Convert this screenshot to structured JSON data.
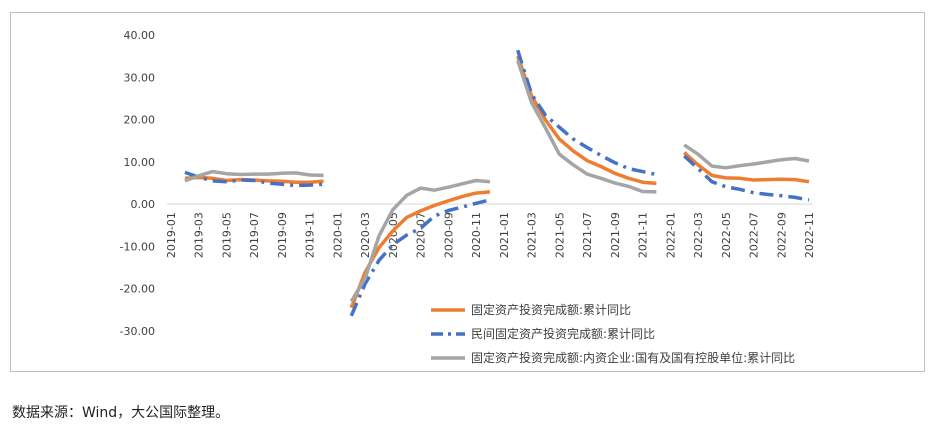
{
  "chart_data": {
    "type": "line",
    "title": "",
    "xlabel": "",
    "ylabel": "",
    "ylim": [
      -30,
      40
    ],
    "yticks": [
      "40.00",
      "30.00",
      "20.00",
      "10.00",
      "0.00",
      "-10.00",
      "-20.00",
      "-30.00"
    ],
    "x": [
      "2019-01",
      "2019-02",
      "2019-03",
      "2019-04",
      "2019-05",
      "2019-06",
      "2019-07",
      "2019-08",
      "2019-09",
      "2019-10",
      "2019-11",
      "2019-12",
      "2020-01",
      "2020-02",
      "2020-03",
      "2020-04",
      "2020-05",
      "2020-06",
      "2020-07",
      "2020-08",
      "2020-09",
      "2020-10",
      "2020-11",
      "2020-12",
      "2021-01",
      "2021-02",
      "2021-03",
      "2021-04",
      "2021-05",
      "2021-06",
      "2021-07",
      "2021-08",
      "2021-09",
      "2021-10",
      "2021-11",
      "2021-12",
      "2022-01",
      "2022-02",
      "2022-03",
      "2022-04",
      "2022-05",
      "2022-06",
      "2022-07",
      "2022-08",
      "2022-09",
      "2022-10",
      "2022-11"
    ],
    "xtick_labels": [
      "2019-01",
      "2019-03",
      "2019-05",
      "2019-07",
      "2019-09",
      "2019-11",
      "2020-01",
      "2020-03",
      "2020-05",
      "2020-07",
      "2020-09",
      "2020-11",
      "2021-01",
      "2021-03",
      "2021-05",
      "2021-07",
      "2021-09",
      "2021-11",
      "2022-01",
      "2022-03",
      "2022-05",
      "2022-07",
      "2022-09",
      "2022-11"
    ],
    "grid": false,
    "legend_position": "bottom-right",
    "series": [
      {
        "name": "固定资产投资完成额:累计同比",
        "color": "#ED7D31",
        "style": "solid",
        "values": [
          null,
          6.1,
          6.3,
          6.1,
          5.6,
          5.8,
          5.7,
          5.5,
          5.4,
          5.2,
          5.2,
          5.4,
          null,
          -24.5,
          -16.1,
          -10.3,
          -6.3,
          -3.1,
          -1.6,
          -0.3,
          0.8,
          1.8,
          2.6,
          2.9,
          null,
          35.0,
          25.6,
          19.9,
          15.4,
          12.6,
          10.3,
          8.9,
          7.3,
          6.1,
          5.2,
          4.9,
          null,
          12.2,
          9.3,
          6.8,
          6.2,
          6.1,
          5.7,
          5.8,
          5.9,
          5.8,
          5.3
        ]
      },
      {
        "name": "民间固定资产投资完成额:累计同比",
        "color": "#4472C4",
        "style": "dash-dot",
        "values": [
          null,
          7.5,
          6.4,
          5.5,
          5.3,
          5.7,
          5.6,
          5.0,
          4.7,
          4.4,
          4.5,
          4.7,
          null,
          -26.4,
          -18.8,
          -13.3,
          -9.6,
          -7.3,
          -5.7,
          -2.8,
          -1.5,
          -0.7,
          0.2,
          1.0,
          null,
          36.4,
          26.0,
          21.0,
          18.2,
          15.4,
          13.4,
          11.5,
          9.8,
          8.4,
          7.7,
          7.0,
          null,
          11.4,
          8.4,
          5.3,
          4.1,
          3.5,
          2.7,
          2.3,
          2.0,
          1.6,
          1.0
        ]
      },
      {
        "name": "固定资产投资完成额:内资企业:国有及国有控股单位:累计同比",
        "color": "#A5A5A5",
        "style": "solid",
        "values": [
          null,
          5.5,
          6.7,
          7.7,
          7.2,
          7.0,
          7.1,
          7.1,
          7.3,
          7.4,
          6.9,
          6.8,
          null,
          -23.0,
          -17.5,
          -7.5,
          -1.3,
          2.1,
          3.8,
          3.3,
          4.0,
          4.8,
          5.6,
          5.3,
          null,
          34.0,
          24.0,
          18.0,
          11.8,
          9.3,
          7.1,
          6.1,
          5.0,
          4.2,
          3.0,
          2.9,
          null,
          14.0,
          11.8,
          9.0,
          8.6,
          9.1,
          9.5,
          10.0,
          10.5,
          10.8,
          10.2
        ]
      }
    ]
  },
  "source_note": "数据来源：Wind，大公国际整理。"
}
